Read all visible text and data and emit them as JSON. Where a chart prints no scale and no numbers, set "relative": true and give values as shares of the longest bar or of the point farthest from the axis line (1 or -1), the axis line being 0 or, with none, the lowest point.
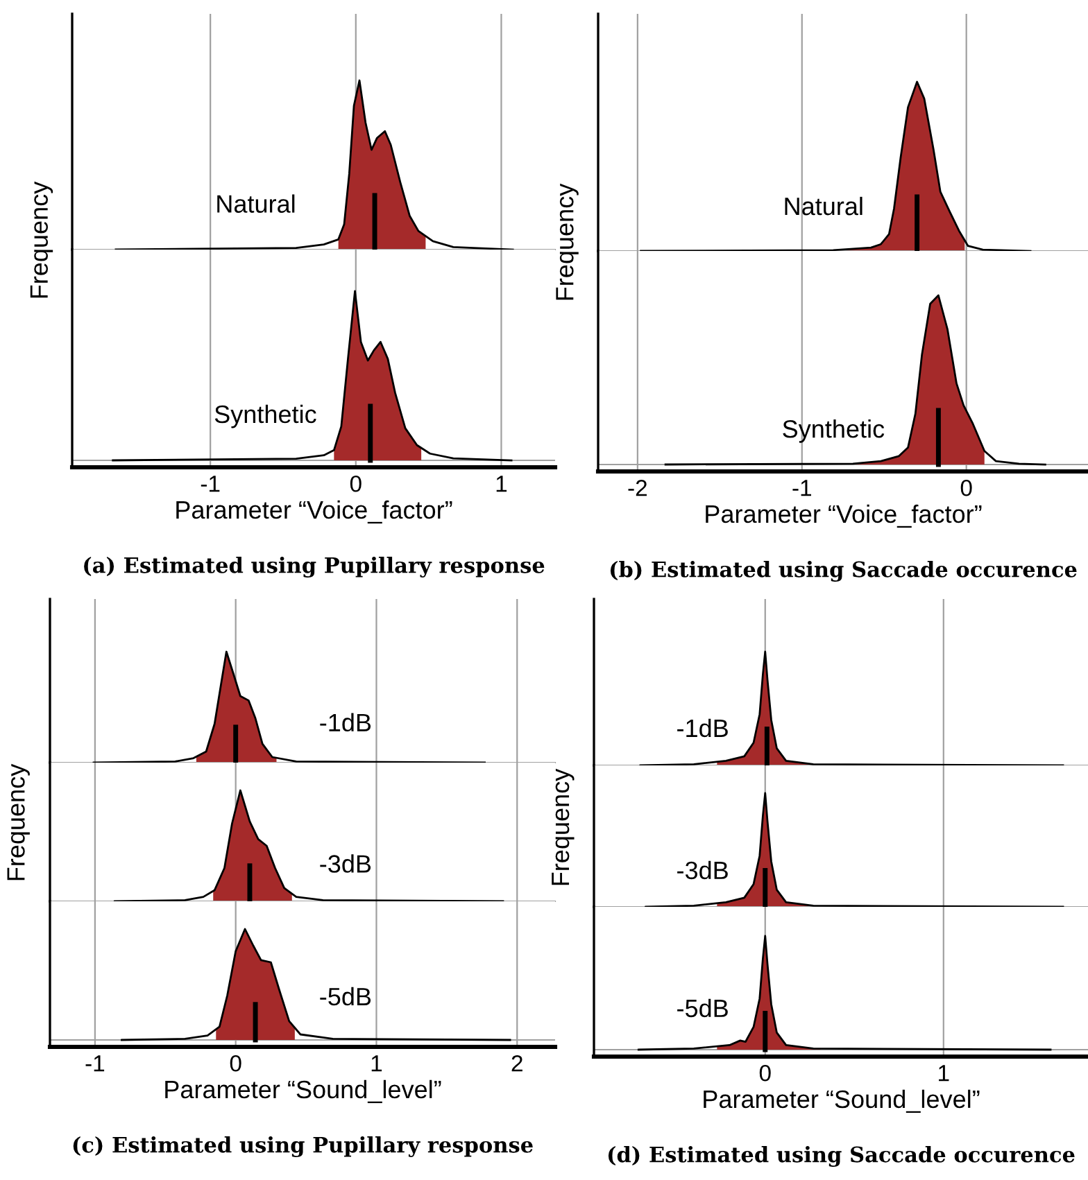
{
  "chart_data": [
    {
      "type": "line",
      "relative": true,
      "series": [
        {
          "type": "line",
          "color": "#000000",
          "x": [
            -1.65,
            -0.41,
            -0.22,
            -0.12,
            -0.08,
            -0.045,
            -0.013,
            0.025,
            0.067,
            0.108,
            0.146,
            0.2,
            0.24,
            0.305,
            0.37,
            0.43,
            0.53,
            0.67,
            1.08
          ],
          "values": [
            0,
            0.01,
            0.03,
            0.06,
            0.15,
            0.45,
            0.85,
            1.0,
            0.75,
            0.59,
            0.66,
            0.7,
            0.62,
            0.4,
            0.2,
            0.11,
            0.05,
            0.015,
            0
          ]
        },
        {
          "type": "area",
          "color": "#a52a2a",
          "x": [
            -0.12,
            -0.08,
            -0.045,
            -0.013,
            0.025,
            0.067,
            0.108,
            0.146,
            0.2,
            0.24,
            0.305,
            0.37,
            0.43,
            0.48
          ],
          "values": [
            0.06,
            0.15,
            0.45,
            0.85,
            1.0,
            0.75,
            0.59,
            0.66,
            0.7,
            0.62,
            0.4,
            0.2,
            0.11,
            0.08
          ]
        }
      ],
      "ref_lines": [
        {
          "axis": "x",
          "value": 0.13,
          "color": "#000000"
        }
      ],
      "annotations": [
        "Natural"
      ],
      "xlim": [
        -1.95,
        1.37
      ],
      "xticks": [
        -1,
        0,
        1
      ],
      "grid": "x",
      "tick_labels": false
    },
    {
      "type": "line",
      "relative": true,
      "series": [
        {
          "type": "line",
          "color": "#000000",
          "x": [
            -1.67,
            -0.41,
            -0.22,
            -0.15,
            -0.1,
            -0.054,
            -0.006,
            0.035,
            0.083,
            0.124,
            0.17,
            0.22,
            0.27,
            0.34,
            0.42,
            0.51,
            0.67,
            1.07
          ],
          "values": [
            0,
            0.01,
            0.03,
            0.06,
            0.2,
            0.6,
            1.0,
            0.7,
            0.59,
            0.65,
            0.7,
            0.6,
            0.4,
            0.19,
            0.09,
            0.04,
            0.012,
            0
          ]
        },
        {
          "type": "area",
          "color": "#a52a2a",
          "x": [
            -0.15,
            -0.1,
            -0.054,
            -0.006,
            0.035,
            0.083,
            0.124,
            0.17,
            0.22,
            0.27,
            0.34,
            0.42,
            0.45
          ],
          "values": [
            0.06,
            0.2,
            0.6,
            1.0,
            0.7,
            0.59,
            0.65,
            0.7,
            0.6,
            0.4,
            0.19,
            0.09,
            0.07
          ]
        }
      ],
      "ref_lines": [
        {
          "axis": "x",
          "value": 0.1,
          "color": "#000000"
        }
      ],
      "annotations": [
        "Synthetic",
        "(a) Estimated using Pupillary response"
      ],
      "xlabel": "Parameter “Voice_factor”",
      "ylabel": "Frequency",
      "xlim": [
        -1.95,
        1.37
      ],
      "xticks": [
        -1,
        0,
        1
      ],
      "grid": "x",
      "tick_labels": "x"
    },
    {
      "type": "line",
      "relative": true,
      "series": [
        {
          "type": "line",
          "color": "#000000",
          "x": [
            -1.98,
            -0.81,
            -0.58,
            -0.52,
            -0.47,
            -0.44,
            -0.4,
            -0.355,
            -0.3,
            -0.256,
            -0.2,
            -0.158,
            -0.1,
            -0.045,
            0.01,
            0.1,
            0.39
          ],
          "values": [
            0,
            0.005,
            0.02,
            0.04,
            0.1,
            0.25,
            0.55,
            0.85,
            1.0,
            0.9,
            0.6,
            0.35,
            0.23,
            0.12,
            0.03,
            0.008,
            0
          ]
        },
        {
          "type": "area",
          "color": "#a52a2a",
          "x": [
            -0.8,
            -0.58,
            -0.52,
            -0.47,
            -0.44,
            -0.4,
            -0.355,
            -0.3,
            -0.256,
            -0.2,
            -0.158,
            -0.1,
            -0.045,
            -0.01
          ],
          "values": [
            0.005,
            0.02,
            0.04,
            0.1,
            0.25,
            0.55,
            0.85,
            1.0,
            0.9,
            0.6,
            0.35,
            0.23,
            0.12,
            0.06
          ]
        }
      ],
      "ref_lines": [
        {
          "axis": "x",
          "value": -0.3,
          "color": "#000000"
        }
      ],
      "annotations": [
        "Natural"
      ],
      "xlim": [
        -2.24,
        0.74
      ],
      "xticks": [
        -2,
        -1,
        0
      ],
      "grid": "x",
      "tick_labels": false
    },
    {
      "type": "line",
      "relative": true,
      "series": [
        {
          "type": "line",
          "color": "#000000",
          "x": [
            -1.83,
            -0.69,
            -0.52,
            -0.41,
            -0.355,
            -0.31,
            -0.27,
            -0.22,
            -0.17,
            -0.115,
            -0.06,
            -0.017,
            0.04,
            0.11,
            0.18,
            0.32,
            0.48
          ],
          "values": [
            0,
            0.005,
            0.02,
            0.05,
            0.1,
            0.3,
            0.65,
            0.95,
            1.0,
            0.8,
            0.48,
            0.35,
            0.24,
            0.08,
            0.02,
            0.005,
            0
          ]
        },
        {
          "type": "area",
          "color": "#a52a2a",
          "x": [
            -0.71,
            -0.52,
            -0.41,
            -0.355,
            -0.31,
            -0.27,
            -0.22,
            -0.17,
            -0.115,
            -0.06,
            -0.017,
            0.04,
            0.11
          ],
          "values": [
            0.005,
            0.02,
            0.05,
            0.1,
            0.3,
            0.65,
            0.95,
            1.0,
            0.8,
            0.48,
            0.35,
            0.24,
            0.08
          ]
        }
      ],
      "ref_lines": [
        {
          "axis": "x",
          "value": -0.17,
          "color": "#000000"
        }
      ],
      "annotations": [
        "Synthetic",
        "(b) Estimated using Saccade occurence"
      ],
      "xlabel": "Parameter “Voice_factor”",
      "ylabel": "Frequency",
      "xlim": [
        -2.24,
        0.74
      ],
      "xticks": [
        -2,
        -1,
        0
      ],
      "grid": "x",
      "tick_labels": "x"
    },
    {
      "type": "line",
      "relative": true,
      "series": [
        {
          "type": "line",
          "color": "#000000",
          "x": [
            -1.01,
            -0.43,
            -0.3,
            -0.21,
            -0.15,
            -0.105,
            -0.066,
            -0.016,
            0.033,
            0.092,
            0.14,
            0.19,
            0.26,
            0.43,
            1.77
          ],
          "values": [
            0,
            0.01,
            0.04,
            0.1,
            0.35,
            0.7,
            1.0,
            0.8,
            0.6,
            0.56,
            0.4,
            0.17,
            0.05,
            0.01,
            0
          ]
        },
        {
          "type": "area",
          "color": "#a52a2a",
          "x": [
            -0.28,
            -0.21,
            -0.15,
            -0.105,
            -0.066,
            -0.016,
            0.033,
            0.092,
            0.14,
            0.19,
            0.26,
            0.29
          ],
          "values": [
            0.05,
            0.1,
            0.35,
            0.7,
            1.0,
            0.8,
            0.6,
            0.56,
            0.4,
            0.17,
            0.05,
            0.04
          ]
        }
      ],
      "ref_lines": [
        {
          "axis": "x",
          "value": 0.0,
          "color": "#000000"
        }
      ],
      "annotations": [
        "-1dB"
      ],
      "xlim": [
        -1.32,
        2.27
      ],
      "xticks": [
        -1,
        0,
        1,
        2
      ],
      "grid": "x",
      "tick_labels": false
    },
    {
      "type": "line",
      "relative": true,
      "series": [
        {
          "type": "line",
          "color": "#000000",
          "x": [
            -0.86,
            -0.36,
            -0.23,
            -0.15,
            -0.08,
            -0.026,
            0.033,
            0.1,
            0.16,
            0.22,
            0.28,
            0.345,
            0.43,
            0.62,
            1.9
          ],
          "values": [
            0,
            0.01,
            0.04,
            0.1,
            0.3,
            0.7,
            1.0,
            0.72,
            0.56,
            0.5,
            0.3,
            0.12,
            0.04,
            0.01,
            0
          ]
        },
        {
          "type": "area",
          "color": "#a52a2a",
          "x": [
            -0.16,
            -0.08,
            -0.026,
            0.033,
            0.1,
            0.16,
            0.22,
            0.28,
            0.345,
            0.4
          ],
          "values": [
            0.09,
            0.3,
            0.7,
            1.0,
            0.72,
            0.56,
            0.5,
            0.3,
            0.12,
            0.07
          ]
        }
      ],
      "ref_lines": [
        {
          "axis": "x",
          "value": 0.1,
          "color": "#000000"
        }
      ],
      "annotations": [
        "-3dB"
      ],
      "xlim": [
        -1.32,
        2.27
      ],
      "xticks": [
        -1,
        0,
        1,
        2
      ],
      "grid": "x",
      "tick_labels": false
    },
    {
      "type": "line",
      "relative": true,
      "series": [
        {
          "type": "line",
          "color": "#000000",
          "x": [
            -0.81,
            -0.36,
            -0.2,
            -0.115,
            -0.06,
            0.0,
            0.066,
            0.125,
            0.18,
            0.25,
            0.31,
            0.38,
            0.46,
            0.69,
            1.95
          ],
          "values": [
            0,
            0.01,
            0.04,
            0.12,
            0.4,
            0.8,
            1.0,
            0.85,
            0.72,
            0.7,
            0.45,
            0.17,
            0.05,
            0.01,
            0
          ]
        },
        {
          "type": "area",
          "color": "#a52a2a",
          "x": [
            -0.14,
            -0.115,
            -0.06,
            0.0,
            0.066,
            0.125,
            0.18,
            0.25,
            0.31,
            0.38,
            0.42
          ],
          "values": [
            0.09,
            0.12,
            0.4,
            0.8,
            1.0,
            0.85,
            0.72,
            0.7,
            0.45,
            0.17,
            0.1
          ]
        }
      ],
      "ref_lines": [
        {
          "axis": "x",
          "value": 0.14,
          "color": "#000000"
        }
      ],
      "annotations": [
        "-5dB",
        "(c) Estimated using Pupillary response"
      ],
      "xlabel": "Parameter “Sound_level”",
      "ylabel": "Frequency",
      "xlim": [
        -1.32,
        2.27
      ],
      "xticks": [
        -1,
        0,
        1,
        2
      ],
      "grid": "x",
      "tick_labels": "x"
    },
    {
      "type": "line",
      "relative": true,
      "series": [
        {
          "type": "line",
          "color": "#000000",
          "x": [
            -0.7,
            -0.4,
            -0.22,
            -0.117,
            -0.065,
            -0.031,
            -0.013,
            0.0,
            0.013,
            0.034,
            0.065,
            0.117,
            0.27,
            1.67
          ],
          "values": [
            0,
            0.01,
            0.04,
            0.08,
            0.2,
            0.45,
            0.8,
            1.0,
            0.75,
            0.4,
            0.15,
            0.04,
            0.01,
            0
          ]
        },
        {
          "type": "area",
          "color": "#a52a2a",
          "x": [
            -0.27,
            -0.22,
            -0.117,
            -0.065,
            -0.031,
            -0.013,
            0.0,
            0.013,
            0.034,
            0.065,
            0.117,
            0.27,
            0.31
          ],
          "values": [
            0.03,
            0.04,
            0.08,
            0.2,
            0.45,
            0.8,
            1.0,
            0.75,
            0.4,
            0.15,
            0.04,
            0.01,
            0.008
          ]
        }
      ],
      "ref_lines": [
        {
          "axis": "x",
          "value": 0.01,
          "color": "#000000"
        }
      ],
      "annotations": [
        "-1dB"
      ],
      "xlim": [
        -0.96,
        1.81
      ],
      "xticks": [
        0,
        1
      ],
      "grid": "x",
      "tick_labels": false
    },
    {
      "type": "line",
      "relative": true,
      "series": [
        {
          "type": "line",
          "color": "#000000",
          "x": [
            -0.67,
            -0.4,
            -0.22,
            -0.117,
            -0.065,
            -0.031,
            -0.013,
            0.0,
            0.013,
            0.034,
            0.065,
            0.117,
            0.27,
            1.67
          ],
          "values": [
            0,
            0.01,
            0.04,
            0.08,
            0.2,
            0.45,
            0.8,
            1.0,
            0.75,
            0.4,
            0.15,
            0.04,
            0.01,
            0
          ]
        },
        {
          "type": "area",
          "color": "#a52a2a",
          "x": [
            -0.27,
            -0.22,
            -0.117,
            -0.065,
            -0.031,
            -0.013,
            0.0,
            0.013,
            0.034,
            0.065,
            0.117,
            0.27,
            0.31
          ],
          "values": [
            0.03,
            0.04,
            0.08,
            0.2,
            0.45,
            0.8,
            1.0,
            0.75,
            0.4,
            0.15,
            0.04,
            0.01,
            0.008
          ]
        }
      ],
      "ref_lines": [
        {
          "axis": "x",
          "value": 0.0,
          "color": "#000000"
        }
      ],
      "annotations": [
        "-3dB"
      ],
      "xlim": [
        -0.96,
        1.81
      ],
      "xticks": [
        0,
        1
      ],
      "grid": "x",
      "tick_labels": false
    },
    {
      "type": "line",
      "relative": true,
      "series": [
        {
          "type": "line",
          "color": "#000000",
          "x": [
            -0.71,
            -0.4,
            -0.2,
            -0.14,
            -0.11,
            -0.065,
            -0.031,
            -0.013,
            0.0,
            0.013,
            0.034,
            0.065,
            0.117,
            0.27,
            1.6
          ],
          "values": [
            0,
            0.01,
            0.04,
            0.08,
            0.07,
            0.2,
            0.45,
            0.8,
            1.0,
            0.75,
            0.4,
            0.15,
            0.04,
            0.01,
            0
          ]
        },
        {
          "type": "area",
          "color": "#a52a2a",
          "x": [
            -0.27,
            -0.2,
            -0.14,
            -0.11,
            -0.065,
            -0.031,
            -0.013,
            0.0,
            0.013,
            0.034,
            0.065,
            0.117,
            0.27,
            0.31
          ],
          "values": [
            0.03,
            0.04,
            0.08,
            0.07,
            0.2,
            0.45,
            0.8,
            1.0,
            0.75,
            0.4,
            0.15,
            0.04,
            0.01,
            0.008
          ]
        }
      ],
      "ref_lines": [
        {
          "axis": "x",
          "value": 0.0,
          "color": "#000000"
        }
      ],
      "annotations": [
        "-5dB",
        "(d) Estimated using Saccade occurence"
      ],
      "xlabel": "Parameter “Sound_level”",
      "ylabel": "Frequency",
      "xlim": [
        -0.96,
        1.81
      ],
      "xticks": [
        0,
        1
      ],
      "grid": "x",
      "tick_labels": "x"
    }
  ]
}
